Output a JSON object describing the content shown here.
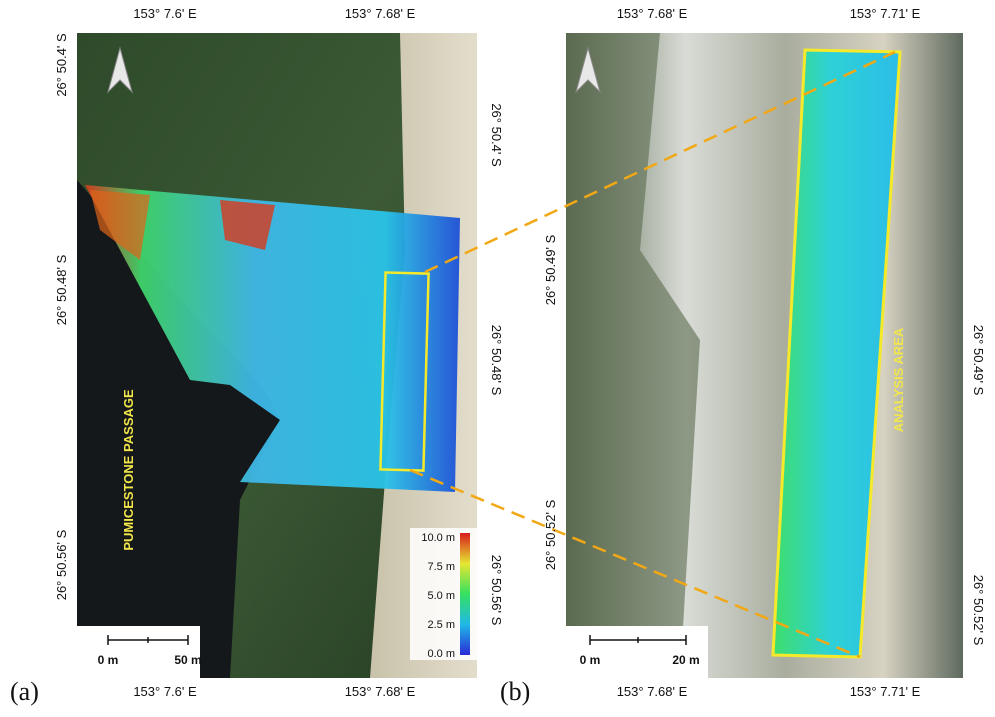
{
  "panels": [
    {
      "label": "(a)",
      "top_labels": [
        "153° 7.6' E",
        "153° 7.68' E"
      ],
      "bottom_labels": [
        "153° 7.6' E",
        "153° 7.68' E"
      ],
      "left_labels": [
        "26° 50.4' S",
        "26° 50.48' S",
        "26° 50.56' S"
      ],
      "right_labels": [
        "26° 50.4' S",
        "26° 50.48' S",
        "26° 50.56' S"
      ],
      "scale_bar": [
        "0 m",
        "50 m"
      ],
      "annotation": "PUMICESTONE PASSAGE",
      "colorbar": [
        "10.0 m",
        "7.5 m",
        "5.0 m",
        "2.5 m",
        "0.0 m"
      ]
    },
    {
      "label": "(b)",
      "top_labels": [
        "153° 7.68' E",
        "153° 7.71' E"
      ],
      "bottom_labels": [
        "153° 7.68' E",
        "153° 7.71' E"
      ],
      "left_labels": [
        "26° 50.49' S",
        "26° 50.52' S"
      ],
      "right_labels": [
        "26° 50.49' S",
        "26° 50.52' S"
      ],
      "scale_bar": [
        "0 m",
        "20 m"
      ],
      "annotation": "ANALYSIS AREA"
    }
  ]
}
